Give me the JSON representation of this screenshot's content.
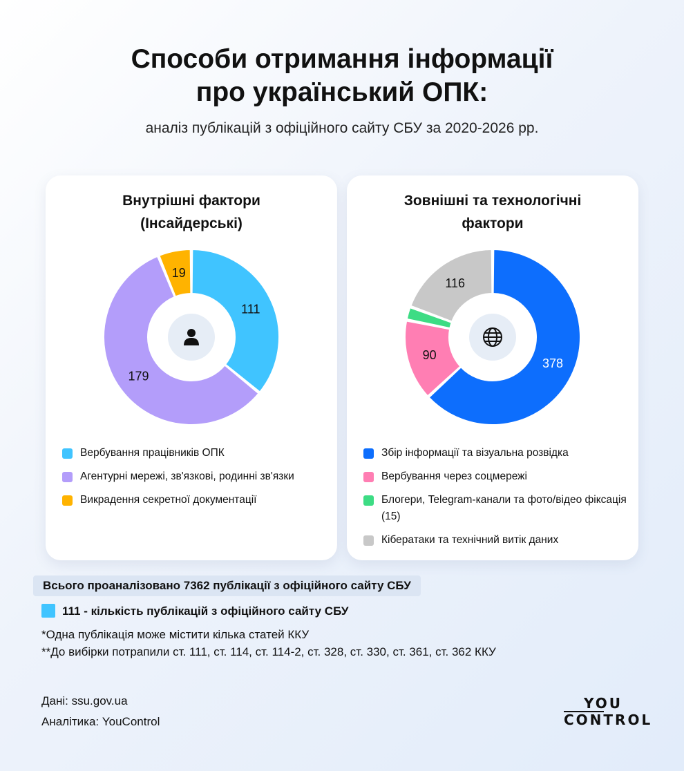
{
  "header": {
    "title_line1": "Способи отримання інформації",
    "title_line2": "про український ОПК:",
    "subtitle": "аналіз публікацій з офіційного сайту СБУ за 2020-2026 рр."
  },
  "cards": {
    "left": {
      "title_line1": "Внутрішні фактори",
      "title_line2": "(Інсайдерські)",
      "center_icon": "person-icon",
      "legend": [
        {
          "label": "Вербування працівників ОПК",
          "color": "#40c4ff"
        },
        {
          "label": "Агентурні мережі, зв'язкові, родинні зв'язки",
          "color": "#b39dfa"
        },
        {
          "label": "Викрадення секретної документації",
          "color": "#ffb300"
        }
      ]
    },
    "right": {
      "title_line1": "Зовнішні та технологічні",
      "title_line2": "фактори",
      "center_icon": "globe-icon",
      "legend": [
        {
          "label": "Збір інформації та візуальна розвідка",
          "color": "#0d6efd"
        },
        {
          "label": "Вербування через соцмережі",
          "color": "#ff7eb3"
        },
        {
          "label": "Блогери, Telegram-канали та фото/відео фіксація (15)",
          "color": "#3ddc84"
        },
        {
          "label": "Кібератаки та технічний витік даних",
          "color": "#c8c8c8"
        }
      ]
    }
  },
  "notes": {
    "total_badge": "Всього проаналізовано 7362 публікації з офіційного сайту СБУ",
    "key_text": "111 - кількість публікацій з офіційного сайту СБУ",
    "footnote1": "*Одна публікація може містити кілька статей ККУ",
    "footnote2": "**До вибірки потрапили ст. 111, ст. 114, ст. 114-2, ст. 328, ст. 330, ст. 361, ст. 362 ККУ",
    "source": "Дані: ssu.gov.ua",
    "analytics": "Аналітика: YouControl"
  },
  "logo": {
    "top": "YOU",
    "bottom": "CONTROL"
  },
  "chart_data": [
    {
      "type": "pie",
      "title": "Внутрішні фактори (Інсайдерські)",
      "categories": [
        "Вербування працівників ОПК",
        "Агентурні мережі, зв'язкові, родинні зв'язки",
        "Викрадення секретної документації"
      ],
      "values": [
        111,
        179,
        19
      ],
      "labels": [
        "111",
        "179",
        "19"
      ],
      "colors": [
        "#40c4ff",
        "#b39dfa",
        "#ffb300"
      ],
      "label_colors": [
        "#111111",
        "#111111",
        "#111111"
      ]
    },
    {
      "type": "pie",
      "title": "Зовнішні та технологічні фактори",
      "categories": [
        "Збір інформації та візуальна розвідка",
        "Вербування через соцмережі",
        "Блогери, Telegram-канали та фото/відео фіксація (15)",
        "Кібератаки та технічний витік даних"
      ],
      "values": [
        378,
        90,
        15,
        116
      ],
      "labels": [
        "378",
        "90",
        "",
        "116"
      ],
      "colors": [
        "#0d6efd",
        "#ff7eb3",
        "#3ddc84",
        "#c8c8c8"
      ],
      "label_colors": [
        "#ffffff",
        "#111111",
        "#111111",
        "#111111"
      ]
    }
  ]
}
